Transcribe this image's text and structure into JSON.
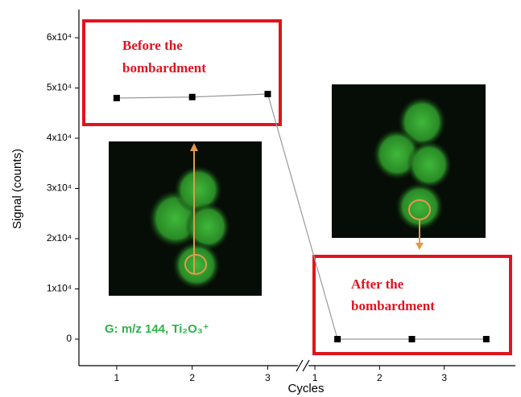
{
  "chart_data": {
    "type": "line",
    "ylabel": "Signal (counts)",
    "xlabel": "Cycles",
    "ylim": [
      -5000,
      65000
    ],
    "yticks": [
      0,
      {
        "value": 10000,
        "label": "1x10⁴"
      },
      {
        "value": 20000,
        "label": "2x10⁴"
      },
      {
        "value": 30000,
        "label": "3x10⁴"
      },
      {
        "value": 40000,
        "label": "4x10⁴"
      },
      {
        "value": 50000,
        "label": "5x10⁴"
      },
      {
        "value": 60000,
        "label": "6x10⁴"
      }
    ],
    "line_color": "#999999",
    "marker_color": "#000000",
    "panels": [
      {
        "xlim": [
          0.5,
          3.4
        ],
        "xticks": [
          1,
          2,
          3
        ],
        "x": [
          1,
          2,
          3
        ],
        "values": [
          48000,
          48200,
          48800
        ]
      },
      {
        "xlim": [
          0.9,
          4.1
        ],
        "xticks": [
          1,
          2,
          3
        ],
        "x": [
          1.35,
          2.5,
          3.65
        ],
        "values": [
          0,
          0,
          0
        ]
      }
    ],
    "annotations": {
      "before": [
        "Before the",
        "bombardment"
      ],
      "after": [
        "After the",
        "bombardment"
      ],
      "label": "G: m/z 144, Ti₂O₃⁺"
    }
  }
}
